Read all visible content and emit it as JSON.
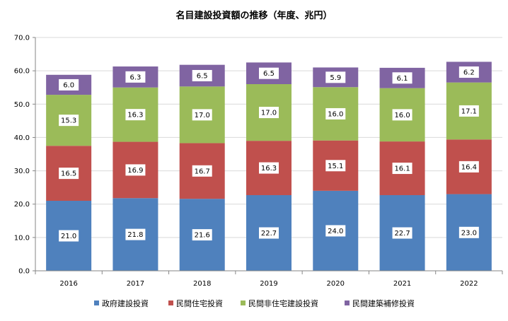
{
  "chart_data": {
    "type": "bar",
    "stacked": true,
    "title": "名目建設投資額の推移（年度、兆円）",
    "categories": [
      "2016",
      "2017",
      "2018",
      "2019",
      "2020",
      "2021",
      "2022"
    ],
    "series": [
      {
        "name": "政府建設投資",
        "color": "#4f81bd",
        "values": [
          21.0,
          21.8,
          21.6,
          22.7,
          24.0,
          22.7,
          23.0
        ]
      },
      {
        "name": "民間住宅投資",
        "color": "#c0504d",
        "values": [
          16.5,
          16.9,
          16.7,
          16.3,
          15.1,
          16.1,
          16.4
        ]
      },
      {
        "name": "民間非住宅建設投資",
        "color": "#9bbb59",
        "values": [
          15.3,
          16.3,
          17.0,
          17.0,
          16.0,
          16.0,
          17.1
        ]
      },
      {
        "name": "民間建築補修投資",
        "color": "#8064a2",
        "values": [
          6.0,
          6.3,
          6.5,
          6.5,
          5.9,
          6.1,
          6.2
        ]
      }
    ],
    "ylim": [
      0,
      70
    ],
    "yticks": [
      "0.0",
      "10.0",
      "20.0",
      "30.0",
      "40.0",
      "50.0",
      "60.0",
      "70.0"
    ],
    "grid": true,
    "legend": "bottom"
  }
}
